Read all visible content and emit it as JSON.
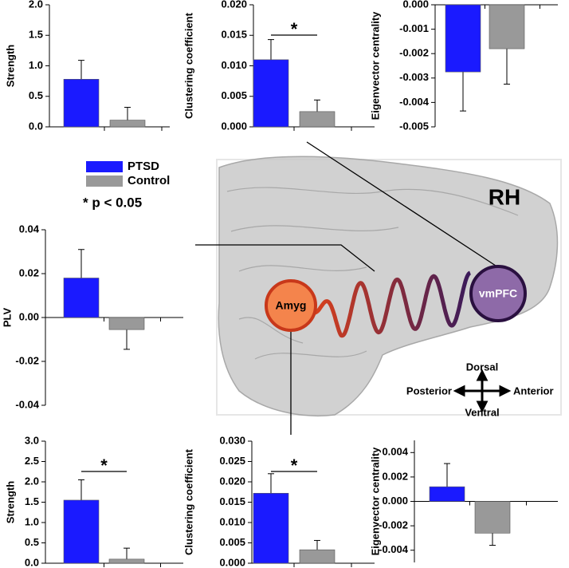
{
  "chart_data": [
    {
      "type": "bar",
      "y_label": "Strength",
      "values": [
        0.78,
        0.11
      ],
      "errors": [
        0.31,
        0.21
      ],
      "ylim": [
        0,
        2
      ],
      "yticks": [
        {
          "value": 0,
          "label": "0.0"
        },
        {
          "value": 0.5,
          "label": "0.5"
        },
        {
          "value": 1,
          "label": "1.0"
        },
        {
          "value": 1.5,
          "label": "1.5"
        },
        {
          "value": 2,
          "label": "2.0"
        }
      ]
    },
    {
      "type": "bar",
      "y_label": "Clustering coefficient",
      "values": [
        0.011,
        0.0025
      ],
      "errors": [
        0.0033,
        0.0019
      ],
      "ylim": [
        0,
        0.02
      ],
      "significance": "*",
      "yticks": [
        {
          "value": 0,
          "label": "0.000"
        },
        {
          "value": 0.005,
          "label": "0.005"
        },
        {
          "value": 0.01,
          "label": "0.010"
        },
        {
          "value": 0.015,
          "label": "0.015"
        },
        {
          "value": 0.02,
          "label": "0.020"
        }
      ]
    },
    {
      "type": "bar",
      "y_label": "Eigenvector centrality",
      "values": [
        -0.00275,
        -0.0018
      ],
      "errors": [
        0.0016,
        0.00145
      ],
      "ylim": [
        -0.005,
        0
      ],
      "yticks": [
        {
          "value": 0,
          "label": "0.000"
        },
        {
          "value": -0.001,
          "label": "-0.001"
        },
        {
          "value": -0.002,
          "label": "-0.002"
        },
        {
          "value": -0.003,
          "label": "-0.003"
        },
        {
          "value": -0.004,
          "label": "-0.004"
        },
        {
          "value": -0.005,
          "label": "-0.005"
        }
      ]
    },
    {
      "type": "bar",
      "y_label": "PLV",
      "values": [
        0.018,
        -0.0055
      ],
      "errors": [
        0.013,
        0.009
      ],
      "ylim": [
        -0.04,
        0.04
      ],
      "yticks": [
        {
          "value": 0.04,
          "label": "0.04"
        },
        {
          "value": 0.02,
          "label": "0.02"
        },
        {
          "value": 0,
          "label": "0.00"
        },
        {
          "value": -0.02,
          "label": "-0.02"
        },
        {
          "value": -0.04,
          "label": "-0.04"
        }
      ]
    },
    {
      "type": "bar",
      "y_label": "Strength",
      "values": [
        1.55,
        0.1
      ],
      "errors": [
        0.5,
        0.27
      ],
      "ylim": [
        0,
        3
      ],
      "significance": "*",
      "yticks": [
        {
          "value": 0,
          "label": "0.0"
        },
        {
          "value": 0.5,
          "label": "0.5"
        },
        {
          "value": 1,
          "label": "1.0"
        },
        {
          "value": 1.5,
          "label": "1.5"
        },
        {
          "value": 2,
          "label": "2.0"
        },
        {
          "value": 2.5,
          "label": "2.5"
        },
        {
          "value": 3,
          "label": "3.0"
        }
      ]
    },
    {
      "type": "bar",
      "y_label": "Clustering coefficient",
      "values": [
        0.0172,
        0.0033
      ],
      "errors": [
        0.0048,
        0.0023
      ],
      "ylim": [
        0,
        0.03
      ],
      "significance": "*",
      "yticks": [
        {
          "value": 0,
          "label": "0.000"
        },
        {
          "value": 0.005,
          "label": "0.005"
        },
        {
          "value": 0.01,
          "label": "0.010"
        },
        {
          "value": 0.015,
          "label": "0.015"
        },
        {
          "value": 0.02,
          "label": "0.020"
        },
        {
          "value": 0.025,
          "label": "0.025"
        },
        {
          "value": 0.03,
          "label": "0.030"
        }
      ]
    },
    {
      "type": "bar",
      "y_label": "Eigenvector centrality",
      "values": [
        0.0012,
        -0.0026
      ],
      "errors": [
        0.0019,
        0.001
      ],
      "ylim": [
        -0.005,
        0.005
      ],
      "yticks": [
        {
          "value": 0.004,
          "label": "0.004"
        },
        {
          "value": 0.002,
          "label": "0.002"
        },
        {
          "value": 0,
          "label": "0.000"
        },
        {
          "value": -0.002,
          "label": "-0.002"
        },
        {
          "value": -0.004,
          "label": "-0.004"
        }
      ]
    }
  ],
  "legend": [
    {
      "name": "PTSD",
      "color": "#1a1aff"
    },
    {
      "name": "Control",
      "color": "#999999"
    }
  ],
  "note": "* p < 0.05",
  "diagram": {
    "hemisphere": "RH",
    "region_a": "Amyg",
    "region_b": "vmPFC",
    "dorsal": "Dorsal",
    "ventral": "Ventral",
    "posterior": "Posterior",
    "anterior": "Anterior"
  }
}
